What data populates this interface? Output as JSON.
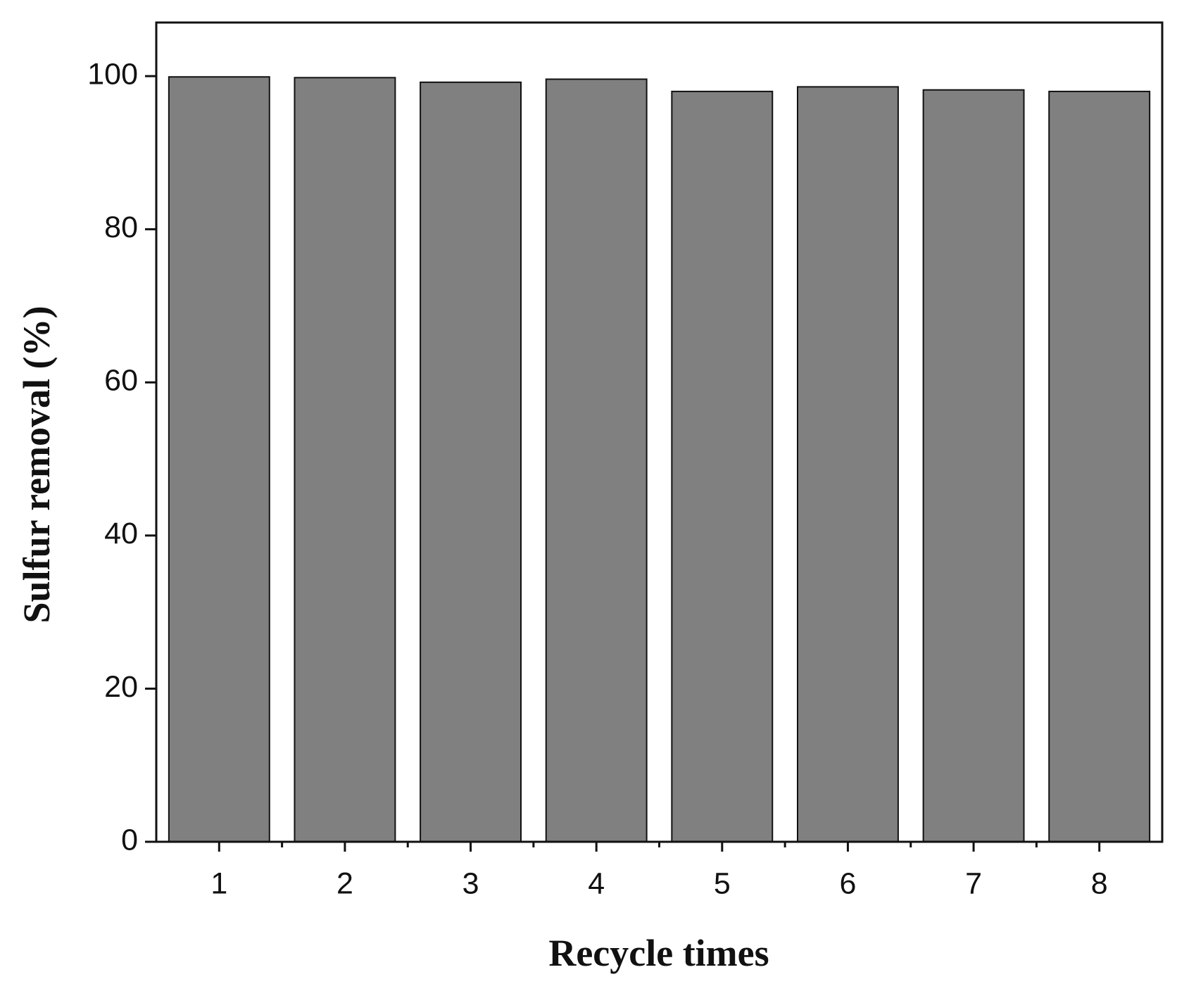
{
  "chart_data": {
    "type": "bar",
    "x_label": "Recycle times",
    "y_label": "Sulfur removal (%)",
    "categories": [
      "1",
      "2",
      "3",
      "4",
      "5",
      "6",
      "7",
      "8"
    ],
    "values": [
      99.9,
      99.8,
      99.2,
      99.6,
      98.0,
      98.6,
      98.2,
      98.0
    ],
    "color": "#808080",
    "ylim": [
      0,
      107
    ],
    "yticks": [
      0,
      20,
      40,
      60,
      80,
      100
    ],
    "grid": false
  }
}
